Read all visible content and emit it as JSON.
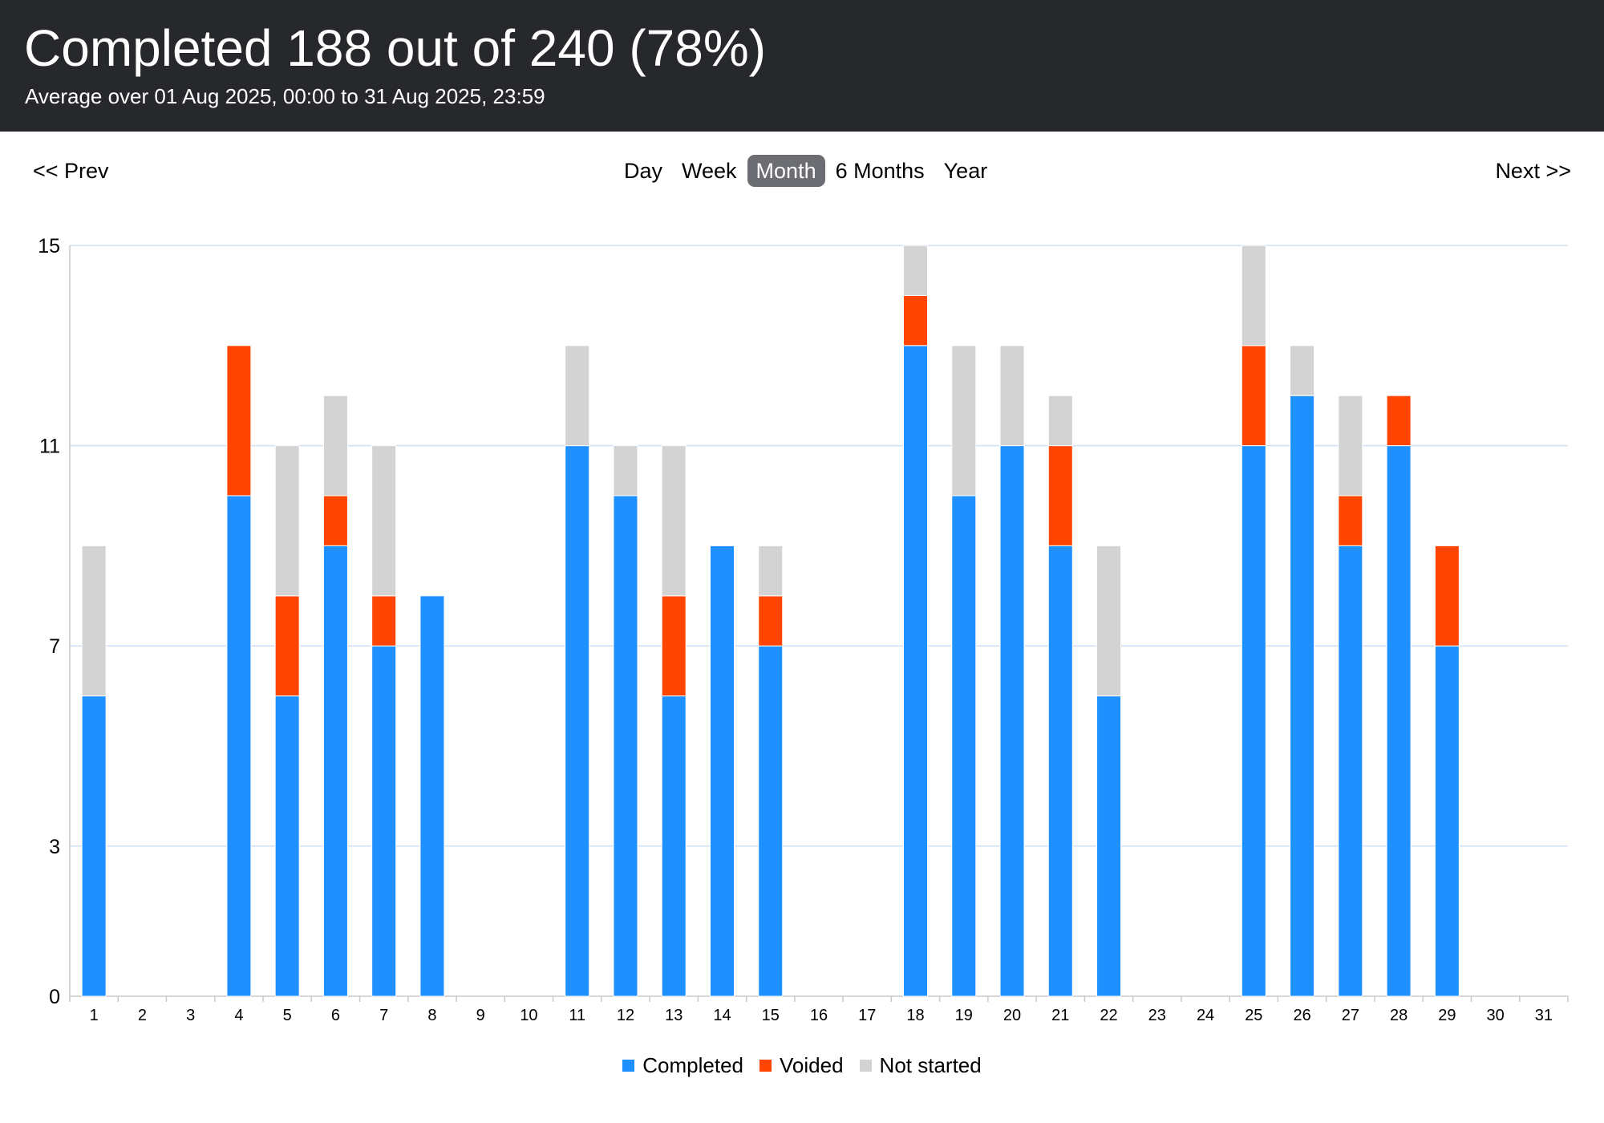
{
  "header": {
    "title": "Completed 188 out of 240 (78%)",
    "subtitle": "Average over 01 Aug 2025, 00:00 to 31 Aug 2025, 23:59"
  },
  "nav": {
    "prev_label": "<< Prev",
    "next_label": "Next >>",
    "ranges": [
      {
        "label": "Day"
      },
      {
        "label": "Week"
      },
      {
        "label": "Month",
        "active": true
      },
      {
        "label": "6 Months"
      },
      {
        "label": "Year"
      }
    ]
  },
  "colors": {
    "completed": "#1e90ff",
    "voided": "#ff4500",
    "not_started": "#d3d3d3",
    "header_bg": "#27282c",
    "grid": "#cfe0f5",
    "axis": "#c8c8c8"
  },
  "legend": [
    {
      "label": "Completed",
      "color_key": "completed"
    },
    {
      "label": "Voided",
      "color_key": "voided"
    },
    {
      "label": "Not started",
      "color_key": "not_started"
    }
  ],
  "chart_data": {
    "type": "bar",
    "stacked": true,
    "title": "",
    "xlabel": "",
    "ylabel": "",
    "ylim": [
      0,
      15
    ],
    "y_ticks": [
      0,
      3,
      7,
      11,
      15
    ],
    "grid": true,
    "legend_position": "bottom-center",
    "categories": [
      "1",
      "2",
      "3",
      "4",
      "5",
      "6",
      "7",
      "8",
      "9",
      "10",
      "11",
      "12",
      "13",
      "14",
      "15",
      "16",
      "17",
      "18",
      "19",
      "20",
      "21",
      "22",
      "23",
      "24",
      "25",
      "26",
      "27",
      "28",
      "29",
      "30",
      "31"
    ],
    "series": [
      {
        "name": "Completed",
        "color_key": "completed",
        "values": [
          6,
          0,
          0,
          10,
          6,
          9,
          7,
          8,
          0,
          0,
          11,
          10,
          6,
          9,
          7,
          0,
          0,
          13,
          10,
          11,
          9,
          6,
          0,
          0,
          11,
          12,
          9,
          11,
          7,
          0,
          0
        ]
      },
      {
        "name": "Voided",
        "color_key": "voided",
        "values": [
          0,
          0,
          0,
          3,
          2,
          1,
          1,
          0,
          0,
          0,
          0,
          0,
          2,
          0,
          1,
          0,
          0,
          1,
          0,
          0,
          2,
          0,
          0,
          0,
          2,
          0,
          1,
          1,
          2,
          0,
          0
        ]
      },
      {
        "name": "Not started",
        "color_key": "not_started",
        "values": [
          3,
          0,
          0,
          0,
          3,
          2,
          3,
          0,
          0,
          0,
          2,
          1,
          3,
          0,
          1,
          0,
          0,
          1,
          3,
          2,
          1,
          3,
          0,
          0,
          2,
          1,
          2,
          0,
          0,
          0,
          0
        ]
      }
    ]
  }
}
